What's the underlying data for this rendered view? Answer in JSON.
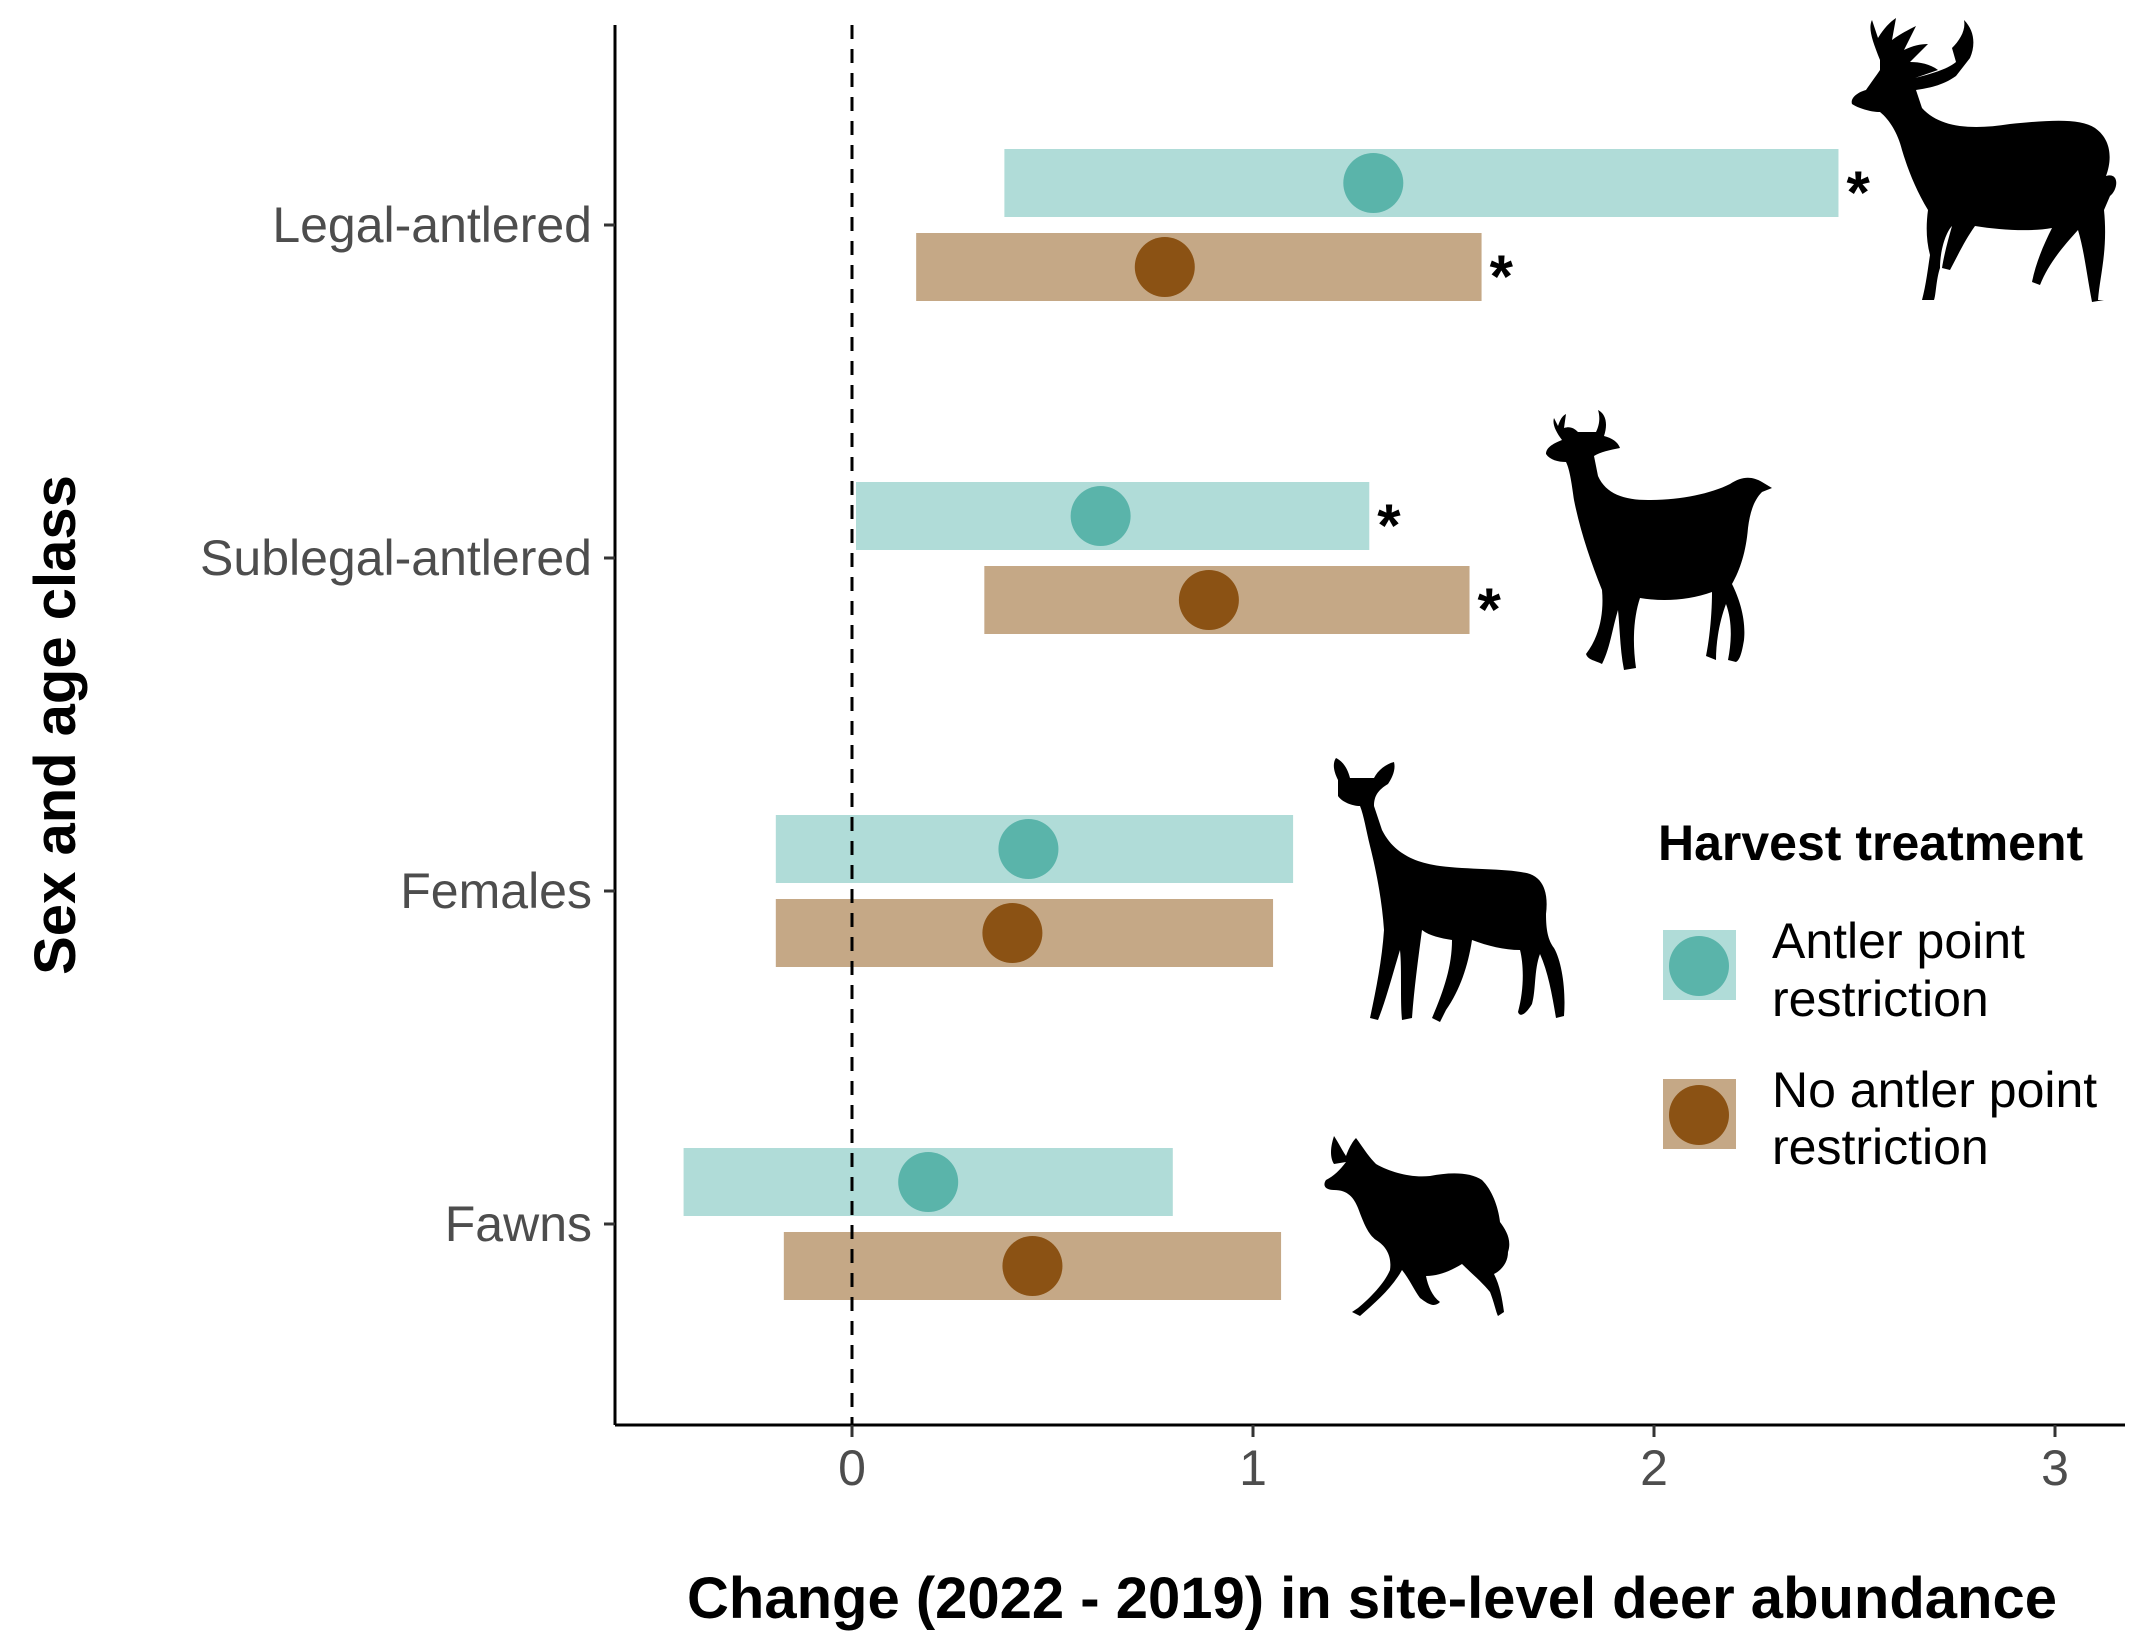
{
  "chart_data": {
    "type": "interval",
    "xlabel": "Change (2022 - 2019) in site-level deer abundance",
    "ylabel": "Sex and age class",
    "xlim": [
      -0.6,
      3.17
    ],
    "x_ticks": [
      "0",
      "1",
      "2",
      "3"
    ],
    "categories": [
      "Legal-antlered",
      "Sublegal-antlered",
      "Females",
      "Fawns"
    ],
    "reference_line": {
      "x": 0,
      "style": "dashed"
    },
    "grid": false,
    "legend": {
      "title": "Harvest treatment",
      "placement": "right",
      "items": [
        {
          "line1": "Antler point",
          "line2": "restriction"
        },
        {
          "line1": "No antler point",
          "line2": "restriction"
        }
      ]
    },
    "series": [
      {
        "name": "Antler point restriction",
        "bar_color": "#b0dcd8",
        "point_color": "#5ab4aa",
        "estimates": [
          1.3,
          0.62,
          0.44,
          0.19
        ],
        "lower": [
          0.38,
          0.01,
          -0.19,
          -0.42
        ],
        "upper": [
          2.46,
          1.29,
          1.1,
          0.8
        ],
        "significant": [
          "*",
          "*",
          "",
          ""
        ]
      },
      {
        "name": "No antler point restriction",
        "bar_color": "#c5a886",
        "point_color": "#8b5214",
        "estimates": [
          0.78,
          0.89,
          0.4,
          0.45
        ],
        "lower": [
          0.16,
          0.33,
          -0.19,
          -0.17
        ],
        "upper": [
          1.57,
          1.54,
          1.05,
          1.07
        ],
        "significant": [
          "*",
          "*",
          "",
          ""
        ]
      }
    ],
    "silhouettes": [
      "buck-silhouette-icon",
      "spike-buck-silhouette-icon",
      "doe-silhouette-icon",
      "fawn-silhouette-icon"
    ]
  }
}
